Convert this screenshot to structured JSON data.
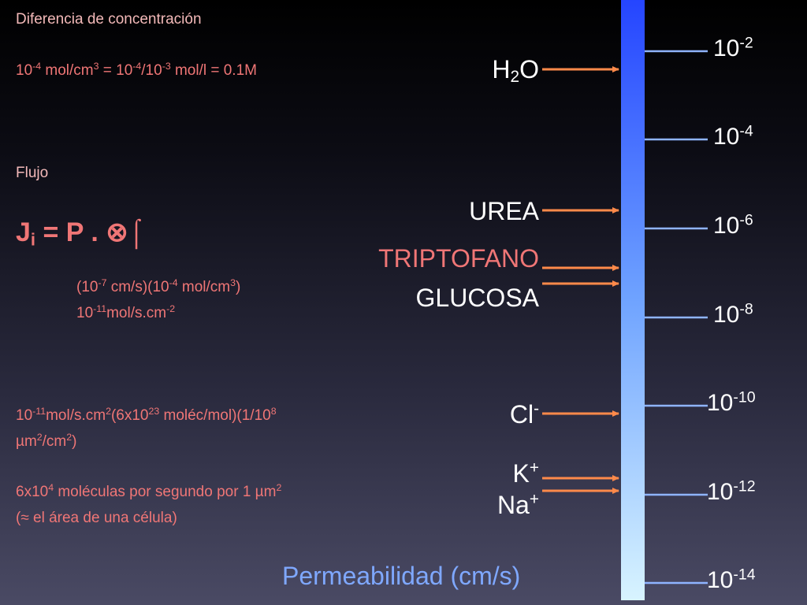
{
  "notes": {
    "heading": "Diferencia de concentración",
    "concentration": [
      "10",
      "-4",
      " mol/cm",
      "3",
      " = 10",
      "-4",
      "/10",
      "-3",
      " mol/l = 0.1M"
    ],
    "flux_heading": "Flujo",
    "equation": [
      "J",
      "i",
      " = P . ⊗⌠"
    ],
    "flux_units": [
      "(10",
      "-7",
      " cm/s)(10",
      "-4",
      " mol/cm",
      "3",
      ")"
    ],
    "flux_result": [
      "10",
      "-11",
      "mol/s.cm",
      "-2"
    ],
    "conversion": [
      "10",
      "-11",
      "mol/s.cm",
      "2",
      "(6x10",
      "23",
      " moléc/mol)(1/10",
      "8"
    ],
    "conversion_2": [
      "µm",
      "2",
      "/cm",
      "2",
      ")"
    ],
    "molecules": [
      "6x10",
      "4",
      " moléculas por segundo por 1 µm",
      "2"
    ],
    "molecules_note": "(≈ el área de una célula)"
  },
  "scale": {
    "ticks": [
      [
        "10",
        "-2"
      ],
      [
        "10",
        "-4"
      ],
      [
        "10",
        "-6"
      ],
      [
        "10",
        "-8"
      ],
      [
        "10",
        "-10"
      ],
      [
        "10",
        "-12"
      ],
      [
        "10",
        "-14"
      ]
    ],
    "axis_label": "Permeabilidad (cm/s)"
  },
  "substances": [
    [
      "H",
      "2",
      "O"
    ],
    [
      "UREA"
    ],
    [
      "TRIPTOFANO"
    ],
    [
      "GLUCOSA"
    ],
    [
      "Cl",
      "-"
    ],
    [
      "K",
      "+"
    ],
    [
      "Na",
      "+"
    ]
  ]
}
